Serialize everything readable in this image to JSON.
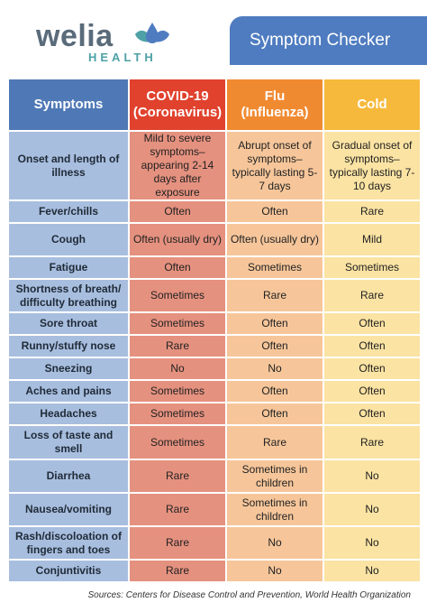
{
  "brand": {
    "name": "welia",
    "sub": "HEALTH",
    "colors": {
      "blue": "#4f7cc0",
      "teal": "#4ea1a6",
      "gray": "#5a6b7a"
    }
  },
  "title": "Symptom Checker",
  "headers": {
    "symptoms": "Symptoms",
    "covid": "COVID-19 (Coronavirus)",
    "flu": "Flu (Influenza)",
    "cold": "Cold"
  },
  "rows": [
    {
      "symptom": "Onset and length of illness",
      "covid": "Mild to severe symptoms– appearing 2-14 days after exposure",
      "flu": "Abrupt onset of symptoms– typically lasting 5-7 days",
      "cold": "Gradual onset of symptoms– typically lasting 7-10 days"
    },
    {
      "symptom": "Fever/chills",
      "covid": "Often",
      "flu": "Often",
      "cold": "Rare"
    },
    {
      "symptom": "Cough",
      "covid": "Often (usually dry)",
      "flu": "Often (usually dry)",
      "cold": "Mild"
    },
    {
      "symptom": "Fatigue",
      "covid": "Often",
      "flu": "Sometimes",
      "cold": "Sometimes"
    },
    {
      "symptom": "Shortness of breath/ difficulty breathing",
      "covid": "Sometimes",
      "flu": "Rare",
      "cold": "Rare"
    },
    {
      "symptom": "Sore throat",
      "covid": "Sometimes",
      "flu": "Often",
      "cold": "Often"
    },
    {
      "symptom": "Runny/stuffy nose",
      "covid": "Rare",
      "flu": "Often",
      "cold": "Often"
    },
    {
      "symptom": "Sneezing",
      "covid": "No",
      "flu": "No",
      "cold": "Often"
    },
    {
      "symptom": "Aches and pains",
      "covid": "Sometimes",
      "flu": "Often",
      "cold": "Often"
    },
    {
      "symptom": "Headaches",
      "covid": "Sometimes",
      "flu": "Often",
      "cold": "Often"
    },
    {
      "symptom": "Loss of taste and smell",
      "covid": "Sometimes",
      "flu": "Rare",
      "cold": "Rare"
    },
    {
      "symptom": "Diarrhea",
      "covid": "Rare",
      "flu": "Sometimes in children",
      "cold": "No"
    },
    {
      "symptom": "Nausea/vomiting",
      "covid": "Rare",
      "flu": "Sometimes in children",
      "cold": "No"
    },
    {
      "symptom": "Rash/discoloation of fingers and toes",
      "covid": "Rare",
      "flu": "No",
      "cold": "No"
    },
    {
      "symptom": "Conjuntivitis",
      "covid": "Rare",
      "flu": "No",
      "cold": "No"
    }
  ],
  "sources": "Sources: Centers for Disease Control and Prevention, World Health Organization"
}
